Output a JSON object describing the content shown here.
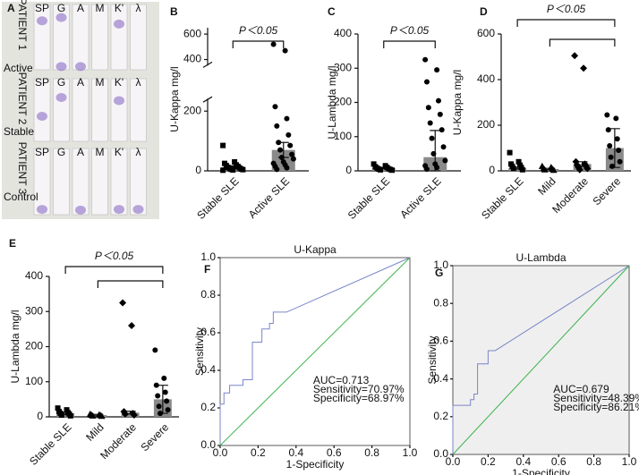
{
  "immunofixation": {
    "label": "A",
    "lanes": [
      "SP",
      "G",
      "A",
      "M",
      "K'",
      "λ"
    ],
    "patients": [
      "PATIENT 1",
      "PATIENT 2",
      "PATIENT 3"
    ],
    "rows": [
      "Active",
      "Stable",
      "Control"
    ]
  },
  "chart_data": [
    {
      "type": "bar",
      "label": "B",
      "ylabel": "U-Kappa mg/l",
      "categories": [
        "Stable SLE",
        "Active SLE"
      ],
      "values": [
        12,
        70
      ],
      "errors": [
        5,
        25
      ],
      "color": "#8a8a8a",
      "markers": [
        "square",
        "circle"
      ],
      "points": [
        [
          85,
          30,
          25,
          20,
          18,
          15,
          12,
          10,
          8,
          6,
          5,
          4,
          3,
          2
        ],
        [
          520,
          470,
          215,
          175,
          150,
          120,
          95,
          85,
          70,
          55,
          45,
          40,
          30,
          25,
          20,
          15,
          10,
          5
        ]
      ],
      "ylim": [
        0,
        650
      ],
      "ybreak": [
        230,
        380
      ],
      "yticks": [
        0,
        200,
        400,
        600
      ],
      "significance": {
        "label": "P＜0.05",
        "brackets": [
          [
            0,
            1
          ]
        ]
      }
    },
    {
      "type": "bar",
      "label": "C",
      "ylabel": "U-Lambda mg/l",
      "categories": [
        "Stable SLE",
        "Active SLE"
      ],
      "values": [
        8,
        40
      ],
      "errors": [
        2,
        78
      ],
      "color": "#8a8a8a",
      "markers": [
        "square",
        "circle"
      ],
      "points": [
        [
          20,
          15,
          12,
          10,
          8,
          6,
          5,
          4,
          3,
          2
        ],
        [
          325,
          295,
          260,
          205,
          185,
          165,
          140,
          120,
          95,
          70,
          50,
          30,
          20,
          15,
          10,
          5
        ]
      ],
      "ylim": [
        0,
        400
      ],
      "yticks": [
        0,
        100,
        200,
        300,
        400
      ],
      "significance": {
        "label": "P＜0.05",
        "brackets": [
          [
            0,
            1
          ]
        ]
      }
    },
    {
      "type": "bar",
      "label": "D",
      "ylabel": "U-Kappa mg/l",
      "categories": [
        "Stable SLE",
        "Mild",
        "Moderate",
        "Severe"
      ],
      "values": [
        12,
        8,
        30,
        100
      ],
      "errors": [
        4,
        3,
        10,
        85
      ],
      "color": "#8a8a8a",
      "markers": [
        "square",
        "triangle",
        "diamond",
        "circle"
      ],
      "points": [
        [
          80,
          40,
          30,
          25,
          20,
          15,
          10,
          5
        ],
        [
          20,
          15,
          10,
          8,
          5,
          3
        ],
        [
          505,
          450,
          40,
          30,
          25,
          20,
          15,
          10,
          5
        ],
        [
          245,
          230,
          180,
          140,
          110,
          90,
          60,
          40,
          20
        ]
      ],
      "ylim": [
        0,
        600
      ],
      "yticks": [
        0,
        200,
        400,
        600
      ],
      "significance": {
        "label": "P＜0.05",
        "brackets": [
          [
            0,
            3
          ],
          [
            1,
            3
          ]
        ]
      }
    },
    {
      "type": "bar",
      "label": "E",
      "ylabel": "U-Lambda mg/l",
      "categories": [
        "Stable SLE",
        "Mild",
        "Moderate",
        "Severe"
      ],
      "values": [
        10,
        5,
        12,
        50
      ],
      "errors": [
        3,
        2,
        4,
        40
      ],
      "color": "#8a8a8a",
      "markers": [
        "square",
        "triangle",
        "diamond",
        "circle"
      ],
      "points": [
        [
          25,
          20,
          15,
          12,
          10,
          8,
          5,
          3
        ],
        [
          8,
          6,
          5,
          4,
          3,
          2
        ],
        [
          325,
          260,
          15,
          10,
          8,
          5
        ],
        [
          190,
          110,
          90,
          70,
          60,
          45,
          30,
          20,
          10
        ]
      ],
      "ylim": [
        0,
        400
      ],
      "yticks": [
        0,
        100,
        200,
        300,
        400
      ],
      "significance": {
        "label": "P＜0.05",
        "brackets": [
          [
            0,
            3
          ],
          [
            1,
            3
          ]
        ]
      }
    },
    {
      "type": "line",
      "label": "F",
      "title": "U-Kappa",
      "xlabel": "1-Specificity",
      "ylabel": "Sensitivity",
      "background": "#ffffff",
      "annotations": [
        "AUC=0.713",
        "Sensitivity=70.97%",
        "Specificity=68.97%"
      ],
      "series": [
        {
          "color": "#7b86c8",
          "x": [
            0,
            0,
            0.02,
            0.02,
            0.05,
            0.05,
            0.12,
            0.12,
            0.17,
            0.17,
            0.22,
            0.22,
            0.26,
            0.26,
            0.28,
            0.28,
            0.35,
            1
          ],
          "values": [
            0,
            0.22,
            0.22,
            0.28,
            0.28,
            0.32,
            0.32,
            0.35,
            0.35,
            0.55,
            0.55,
            0.62,
            0.62,
            0.65,
            0.65,
            0.71,
            0.71,
            1
          ]
        },
        {
          "color": "#3cb44b",
          "x": [
            0,
            1
          ],
          "values": [
            0,
            1
          ]
        }
      ],
      "xlim": [
        0,
        1
      ],
      "ylim": [
        0,
        1
      ],
      "xticks": [
        {
          "value": 0,
          "label": "0.0"
        },
        0.2,
        0.4,
        0.6,
        0.8,
        {
          "value": 1,
          "label": "1.0"
        }
      ],
      "yticks": [
        {
          "value": 0,
          "label": "0.0"
        },
        0.2,
        0.4,
        0.6,
        0.8,
        {
          "value": 1,
          "label": "1.0"
        }
      ]
    },
    {
      "type": "line",
      "label": "G",
      "title": "U-Lambda",
      "xlabel": "1-Specificity",
      "ylabel": "Sensitivity",
      "background": "#efefef",
      "annotations": [
        "AUC=0.679",
        "Sensitivity=48.39%",
        "Specificity=86.21%"
      ],
      "series": [
        {
          "color": "#7b86c8",
          "x": [
            0,
            0,
            0.1,
            0.1,
            0.12,
            0.12,
            0.14,
            0.14,
            0.2,
            0.2,
            0.24,
            1
          ],
          "values": [
            0,
            0.26,
            0.26,
            0.29,
            0.29,
            0.32,
            0.32,
            0.48,
            0.48,
            0.55,
            0.55,
            1
          ]
        },
        {
          "color": "#3cb44b",
          "x": [
            0,
            1
          ],
          "values": [
            0,
            1
          ]
        }
      ],
      "xlim": [
        0,
        1
      ],
      "ylim": [
        0,
        1
      ],
      "xticks": [
        {
          "value": 0,
          "label": "0.0"
        },
        0.2,
        0.4,
        0.6,
        0.8,
        {
          "value": 1,
          "label": "1.0"
        }
      ],
      "yticks": [
        {
          "value": 0,
          "label": "0.0"
        },
        0.2,
        0.4,
        0.6,
        0.8,
        {
          "value": 1,
          "label": "1.0"
        }
      ]
    }
  ]
}
